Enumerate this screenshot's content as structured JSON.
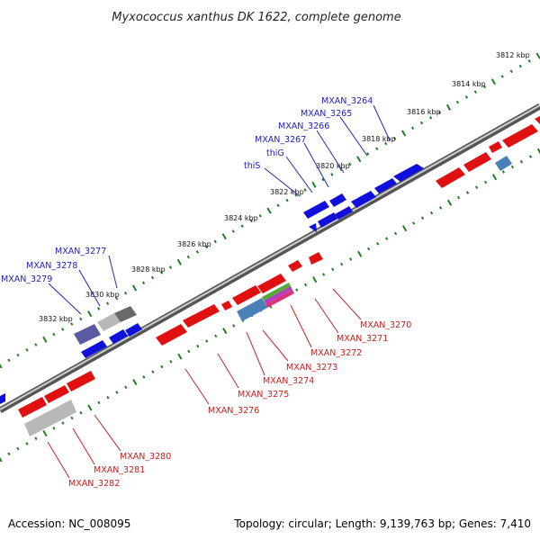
{
  "title": "Myxococcus xanthus DK 1622, complete genome",
  "footer": {
    "accession": "Accession: NC_008095",
    "summary": "Topology: circular; Length: 9,139,763 bp; Genes: 7,410"
  },
  "scale_ticks": [
    "3812 kbp",
    "3814 kbp",
    "3816 kbp",
    "3818 kbp",
    "3820 kbp",
    "3822 kbp",
    "3824 kbp",
    "3826 kbp",
    "3828 kbp",
    "3830 kbp",
    "3832 kbp"
  ],
  "forward_labels": [
    "MXAN_3264",
    "MXAN_3265",
    "MXAN_3266",
    "MXAN_3267",
    "thiG",
    "thiS",
    "MXAN_3277",
    "MXAN_3278",
    "MXAN_3279"
  ],
  "reverse_labels": [
    "MXAN_3270",
    "MXAN_3271",
    "MXAN_3272",
    "MXAN_3273",
    "MXAN_3274",
    "MXAN_3275",
    "MXAN_3276",
    "MXAN_3280",
    "MXAN_3281",
    "MXAN_3282"
  ],
  "colors": {
    "forward": "#1010dd",
    "reverse": "#e01010",
    "backbone": "#808080",
    "tick": "#208020",
    "fwd_leader": "#2020cc",
    "rev_leader": "#cc2020"
  }
}
